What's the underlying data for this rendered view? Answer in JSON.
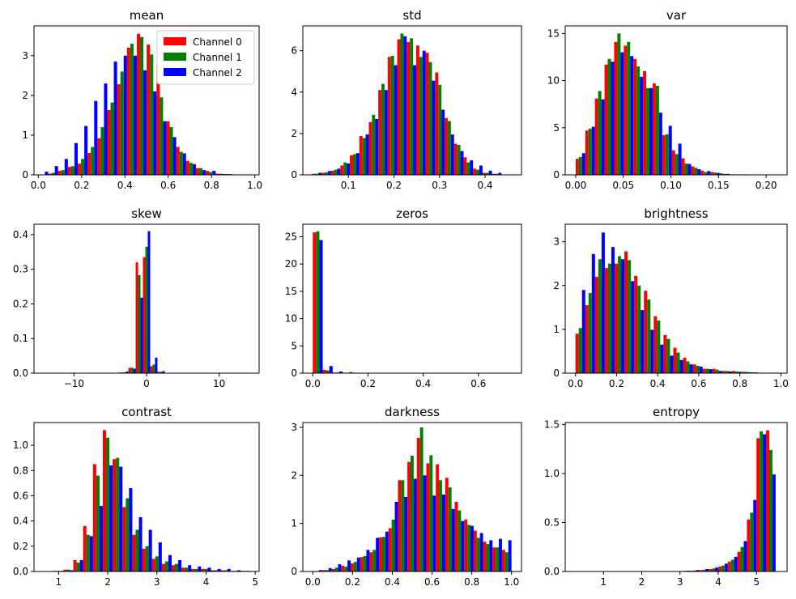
{
  "colors": {
    "channel_0": "#ff0000",
    "channel_1": "#008000",
    "channel_2": "#0000ff"
  },
  "legend": {
    "placement": "top-right",
    "entries": [
      "Channel 0",
      "Channel 1",
      "Channel 2"
    ]
  },
  "chart_data": [
    {
      "type": "bar",
      "title": "mean",
      "xlim": [
        -0.02,
        1.02
      ],
      "ylim": [
        0,
        3.75
      ],
      "xticks": [
        0.0,
        0.2,
        0.4,
        0.6,
        0.8,
        1.0
      ],
      "xtick_labels": [
        "0.0",
        "0.2",
        "0.4",
        "0.6",
        "0.8",
        "1.0"
      ],
      "yticks": [
        0,
        1,
        2,
        3
      ],
      "ytick_labels": [
        "0",
        "1",
        "2",
        "3"
      ],
      "bin_start": 0.0,
      "bin_width": 0.0455,
      "legend": true,
      "series": [
        {
          "name": "Channel 0",
          "values": [
            0,
            0.03,
            0.1,
            0.2,
            0.28,
            0.55,
            0.92,
            1.63,
            2.28,
            3.2,
            3.55,
            3.28,
            2.76,
            1.35,
            0.7,
            0.35,
            0.17,
            0.1,
            0.03,
            0.02,
            0.01
          ]
        },
        {
          "name": "Channel 1",
          "values": [
            0,
            0.05,
            0.12,
            0.22,
            0.4,
            0.7,
            1.2,
            1.82,
            2.6,
            3.3,
            3.47,
            3.03,
            1.95,
            1.2,
            0.58,
            0.3,
            0.17,
            0.07,
            0.03,
            0.02,
            0.01
          ]
        },
        {
          "name": "Channel 2",
          "values": [
            0.08,
            0.22,
            0.4,
            0.8,
            1.23,
            1.86,
            2.3,
            2.85,
            3.0,
            3.0,
            2.63,
            2.1,
            1.35,
            0.95,
            0.54,
            0.27,
            0.12,
            0.1,
            0.02,
            0.01,
            0.0
          ]
        }
      ]
    },
    {
      "type": "bar",
      "title": "std",
      "xlim": [
        0.0,
        0.48
      ],
      "ylim": [
        0,
        7.2
      ],
      "xticks": [
        0.1,
        0.2,
        0.3,
        0.4
      ],
      "xtick_labels": [
        "0.1",
        "0.2",
        "0.3",
        "0.4"
      ],
      "yticks": [
        0,
        2,
        4,
        6
      ],
      "ytick_labels": [
        "0",
        "2",
        "4",
        "6"
      ],
      "bin_start": 0.02,
      "bin_width": 0.0208,
      "legend": false,
      "series": [
        {
          "name": "Channel 0",
          "values": [
            0.05,
            0.1,
            0.2,
            0.45,
            0.95,
            1.88,
            2.55,
            4.1,
            5.7,
            6.55,
            6.42,
            6.25,
            5.9,
            4.95,
            2.75,
            1.5,
            0.85,
            0.3,
            0.1,
            0.05,
            0.02
          ]
        },
        {
          "name": "Channel 1",
          "values": [
            0.05,
            0.12,
            0.25,
            0.6,
            1.0,
            1.78,
            2.9,
            4.4,
            5.75,
            6.83,
            6.6,
            5.7,
            5.45,
            4.35,
            2.6,
            1.45,
            0.6,
            0.25,
            0.1,
            0.05,
            0.02
          ]
        },
        {
          "name": "Channel 2",
          "values": [
            0.1,
            0.18,
            0.3,
            0.55,
            1.05,
            1.95,
            2.7,
            4.1,
            5.3,
            6.7,
            5.3,
            6.0,
            4.55,
            3.15,
            1.95,
            1.15,
            0.7,
            0.45,
            0.2,
            0.1,
            0.02
          ]
        }
      ]
    },
    {
      "type": "bar",
      "title": "var",
      "xlim": [
        -0.011,
        0.222
      ],
      "ylim": [
        0,
        15.8
      ],
      "xticks": [
        0.0,
        0.05,
        0.1,
        0.15,
        0.2
      ],
      "xtick_labels": [
        "0.00",
        "0.05",
        "0.10",
        "0.15",
        "0.20"
      ],
      "yticks": [
        0,
        5,
        10,
        15
      ],
      "ytick_labels": [
        "0",
        "5",
        "10",
        "15"
      ],
      "bin_start": 0.0,
      "bin_width": 0.0101,
      "legend": false,
      "series": [
        {
          "name": "Channel 0",
          "values": [
            1.7,
            4.7,
            8.1,
            11.7,
            14.1,
            13.7,
            12.3,
            11.0,
            9.7,
            4.2,
            2.6,
            1.75,
            0.9,
            0.45,
            0.3,
            0.15,
            0.05,
            0.05,
            0.02,
            0.01,
            0.01
          ]
        },
        {
          "name": "Channel 1",
          "values": [
            1.9,
            4.9,
            8.9,
            12.3,
            15.0,
            14.1,
            11.5,
            9.2,
            9.45,
            4.3,
            2.2,
            1.2,
            0.75,
            0.3,
            0.25,
            0.1,
            0.05,
            0.05,
            0.02,
            0.01,
            0.01
          ]
        },
        {
          "name": "Channel 2",
          "values": [
            2.3,
            5.1,
            8.0,
            12.0,
            13.0,
            12.6,
            10.4,
            9.2,
            6.6,
            5.2,
            3.3,
            1.15,
            0.6,
            0.4,
            0.2,
            0.1,
            0.05,
            0.05,
            0.02,
            0.01,
            0.01
          ]
        }
      ]
    },
    {
      "type": "bar",
      "title": "skew",
      "xlim": [
        -15.5,
        15.5
      ],
      "ylim": [
        0,
        0.43
      ],
      "xticks": [
        -10,
        0,
        10
      ],
      "xtick_labels": [
        "−10",
        "0",
        "10"
      ],
      "yticks": [
        0.0,
        0.1,
        0.2,
        0.3,
        0.4
      ],
      "ytick_labels": [
        "0.0",
        "0.1",
        "0.2",
        "0.3",
        "0.4"
      ],
      "bin_start": -14.5,
      "bin_width": 1.0,
      "legend": false,
      "series": [
        {
          "name": "Channel 0",
          "values": [
            0,
            0,
            0,
            0,
            0,
            0,
            0,
            0,
            0,
            0,
            0.001,
            0.002,
            0.015,
            0.32,
            0.335,
            0.02,
            0.004,
            0.001,
            0,
            0,
            0,
            0,
            0,
            0,
            0,
            0,
            0,
            0,
            0
          ]
        },
        {
          "name": "Channel 1",
          "values": [
            0,
            0,
            0,
            0,
            0,
            0,
            0,
            0,
            0,
            0,
            0.001,
            0.003,
            0.016,
            0.283,
            0.365,
            0.025,
            0.004,
            0.001,
            0,
            0,
            0,
            0,
            0,
            0,
            0,
            0,
            0,
            0,
            0
          ]
        },
        {
          "name": "Channel 2",
          "values": [
            0,
            0,
            0,
            0,
            0,
            0,
            0,
            0,
            0,
            0,
            0.002,
            0.005,
            0.013,
            0.218,
            0.41,
            0.045,
            0.006,
            0.001,
            0,
            0,
            0,
            0,
            0,
            0,
            0,
            0,
            0,
            0,
            0
          ]
        }
      ]
    },
    {
      "type": "bar",
      "title": "zeros",
      "xlim": [
        -0.036,
        0.756
      ],
      "ylim": [
        0,
        27.3
      ],
      "xticks": [
        0.0,
        0.2,
        0.4,
        0.6
      ],
      "xtick_labels": [
        "0.0",
        "0.2",
        "0.4",
        "0.6"
      ],
      "yticks": [
        0,
        5,
        10,
        15,
        20,
        25
      ],
      "ytick_labels": [
        "0",
        "5",
        "10",
        "15",
        "20",
        "25"
      ],
      "bin_start": 0.0,
      "bin_width": 0.036,
      "legend": false,
      "series": [
        {
          "name": "Channel 0",
          "values": [
            25.8,
            0.6,
            0.12,
            0.08,
            0.05,
            0.02,
            0.02,
            0.01,
            0,
            0,
            0,
            0,
            0,
            0,
            0,
            0,
            0,
            0,
            0,
            0
          ]
        },
        {
          "name": "Channel 1",
          "values": [
            26.0,
            0.5,
            0.12,
            0.06,
            0.03,
            0.02,
            0.01,
            0.01,
            0,
            0,
            0,
            0,
            0,
            0,
            0,
            0,
            0,
            0,
            0,
            0
          ]
        },
        {
          "name": "Channel 2",
          "values": [
            24.4,
            1.3,
            0.3,
            0.18,
            0.08,
            0.05,
            0.02,
            0.01,
            0,
            0,
            0,
            0,
            0,
            0,
            0,
            0,
            0,
            0,
            0,
            0
          ]
        }
      ]
    },
    {
      "type": "bar",
      "title": "brightness",
      "xlim": [
        -0.05,
        1.03
      ],
      "ylim": [
        0,
        3.4
      ],
      "xticks": [
        0.0,
        0.2,
        0.4,
        0.6,
        0.8,
        1.0
      ],
      "xtick_labels": [
        "0.0",
        "0.2",
        "0.4",
        "0.6",
        "0.8",
        "1.0"
      ],
      "yticks": [
        0,
        1,
        2,
        3
      ],
      "ytick_labels": [
        "0",
        "1",
        "2",
        "3"
      ],
      "bin_start": 0.0,
      "bin_width": 0.0476,
      "legend": false,
      "series": [
        {
          "name": "Channel 0",
          "values": [
            0.9,
            1.55,
            2.2,
            2.4,
            2.5,
            2.78,
            2.22,
            1.88,
            1.3,
            0.87,
            0.58,
            0.35,
            0.2,
            0.1,
            0.1,
            0.05,
            0.05,
            0.03,
            0.02,
            0.01,
            0.01
          ]
        },
        {
          "name": "Channel 1",
          "values": [
            1.03,
            1.83,
            2.6,
            2.5,
            2.67,
            2.58,
            2.0,
            1.68,
            1.2,
            0.78,
            0.47,
            0.27,
            0.17,
            0.1,
            0.08,
            0.05,
            0.04,
            0.03,
            0.02,
            0.01,
            0.01
          ]
        },
        {
          "name": "Channel 2",
          "values": [
            1.9,
            2.72,
            3.21,
            2.88,
            2.6,
            2.1,
            1.44,
            0.99,
            0.65,
            0.4,
            0.3,
            0.2,
            0.15,
            0.09,
            0.05,
            0.04,
            0.03,
            0.02,
            0.01,
            0.01,
            0.01
          ]
        }
      ]
    },
    {
      "type": "bar",
      "title": "contrast",
      "xlim": [
        0.5,
        5.08
      ],
      "ylim": [
        0,
        1.18
      ],
      "xticks": [
        1,
        2,
        3,
        4,
        5
      ],
      "xtick_labels": [
        "1",
        "2",
        "3",
        "4",
        "5"
      ],
      "yticks": [
        0.0,
        0.2,
        0.4,
        0.6,
        0.8,
        1.0
      ],
      "ytick_labels": [
        "0.0",
        "0.2",
        "0.4",
        "0.6",
        "0.8",
        "1.0"
      ],
      "bin_start": 0.9,
      "bin_width": 0.2,
      "legend": false,
      "series": [
        {
          "name": "Channel 0",
          "values": [
            0.005,
            0.015,
            0.09,
            0.36,
            0.85,
            1.12,
            0.89,
            0.51,
            0.29,
            0.18,
            0.1,
            0.06,
            0.05,
            0.03,
            0.02,
            0.02,
            0.01,
            0.01,
            0.005,
            0.005
          ]
        },
        {
          "name": "Channel 1",
          "values": [
            0.005,
            0.015,
            0.07,
            0.29,
            0.76,
            1.06,
            0.9,
            0.58,
            0.33,
            0.2,
            0.12,
            0.08,
            0.06,
            0.03,
            0.02,
            0.02,
            0.01,
            0.01,
            0.005,
            0.005
          ]
        },
        {
          "name": "Channel 2",
          "values": [
            0.005,
            0.01,
            0.09,
            0.28,
            0.52,
            0.84,
            0.83,
            0.66,
            0.43,
            0.33,
            0.23,
            0.13,
            0.09,
            0.05,
            0.04,
            0.03,
            0.02,
            0.02,
            0.01,
            0.005
          ]
        }
      ]
    },
    {
      "type": "bar",
      "title": "darkness",
      "xlim": [
        -0.05,
        1.05
      ],
      "ylim": [
        0,
        3.1
      ],
      "xticks": [
        0.0,
        0.2,
        0.4,
        0.6,
        0.8,
        1.0
      ],
      "xtick_labels": [
        "0.0",
        "0.2",
        "0.4",
        "0.6",
        "0.8",
        "1.0"
      ],
      "yticks": [
        0,
        1,
        2,
        3
      ],
      "ytick_labels": [
        "0",
        "1",
        "2",
        "3"
      ],
      "bin_start": 0.0,
      "bin_width": 0.0476,
      "legend": false,
      "series": [
        {
          "name": "Channel 0",
          "values": [
            0.01,
            0.03,
            0.05,
            0.12,
            0.17,
            0.3,
            0.4,
            0.71,
            0.9,
            1.9,
            2.28,
            2.78,
            2.25,
            2.23,
            1.95,
            1.45,
            1.08,
            0.85,
            0.62,
            0.5,
            0.45
          ]
        },
        {
          "name": "Channel 1",
          "values": [
            0.01,
            0.03,
            0.08,
            0.1,
            0.2,
            0.32,
            0.45,
            0.72,
            1.08,
            1.9,
            2.41,
            3.0,
            2.42,
            1.9,
            1.75,
            1.27,
            0.97,
            0.7,
            0.57,
            0.5,
            0.4
          ]
        },
        {
          "name": "Channel 2",
          "values": [
            0.03,
            0.07,
            0.15,
            0.23,
            0.29,
            0.45,
            0.7,
            0.83,
            1.45,
            1.55,
            1.93,
            2.0,
            1.58,
            1.6,
            1.3,
            1.05,
            0.95,
            0.8,
            0.65,
            0.68,
            0.65
          ]
        }
      ]
    },
    {
      "type": "bar",
      "title": "entropy",
      "xlim": [
        0.0,
        5.8
      ],
      "ylim": [
        0,
        1.52
      ],
      "xticks": [
        1,
        2,
        3,
        4,
        5
      ],
      "xtick_labels": [
        "1",
        "2",
        "3",
        "4",
        "5"
      ],
      "yticks": [
        0.0,
        0.5,
        1.0,
        1.5
      ],
      "ytick_labels": [
        "0.0",
        "0.5",
        "1.0",
        "1.5"
      ],
      "bin_start": 0.25,
      "bin_width": 0.25,
      "legend": false,
      "series": [
        {
          "name": "Channel 0",
          "values": [
            0,
            0,
            0,
            0,
            0,
            0,
            0,
            0,
            0,
            0,
            0.002,
            0.005,
            0.008,
            0.015,
            0.025,
            0.05,
            0.1,
            0.2,
            0.53,
            1.36,
            1.44
          ]
        },
        {
          "name": "Channel 1",
          "values": [
            0,
            0,
            0,
            0,
            0,
            0,
            0,
            0,
            0,
            0,
            0.002,
            0.006,
            0.01,
            0.018,
            0.03,
            0.06,
            0.12,
            0.25,
            0.6,
            1.43,
            1.24
          ]
        },
        {
          "name": "Channel 2",
          "values": [
            0,
            0,
            0,
            0,
            0,
            0,
            0,
            0,
            0,
            0,
            0.003,
            0.008,
            0.015,
            0.025,
            0.04,
            0.08,
            0.15,
            0.31,
            0.73,
            1.4,
            0.99
          ]
        }
      ]
    }
  ]
}
